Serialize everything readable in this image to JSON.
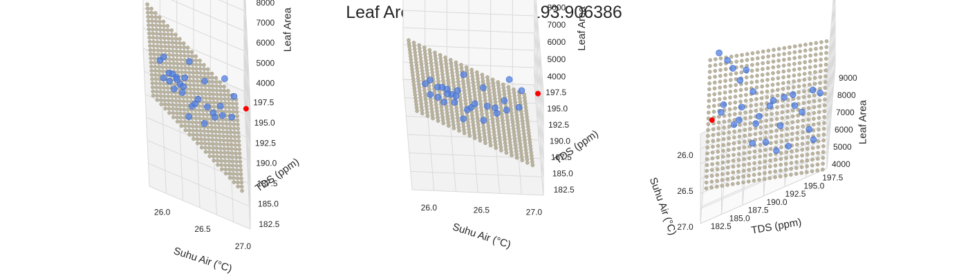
{
  "title": "Leaf Area Prediction = 9193.906386",
  "chart_data": {
    "type": "scatter",
    "variant": "3d-scatter-with-regression-plane",
    "panels": 3,
    "xlabel": "Suhu Air (°C)",
    "ylabel": "TDS (ppm)",
    "zlabel": "Leaf Area",
    "xlim": [
      25.85,
      27.1
    ],
    "ylim": [
      181.5,
      198.5
    ],
    "zlim": [
      3500,
      9500
    ],
    "x_ticks": [
      "27.0",
      "26.5",
      "26.0"
    ],
    "y_ticks": [
      "182.5",
      "185.0",
      "187.5",
      "190.0",
      "192.5",
      "195.0",
      "197.5"
    ],
    "z_ticks": [
      "4000",
      "5000",
      "6000",
      "7000",
      "8000",
      "9000"
    ],
    "plane_color": "#b8b09a",
    "point_color": "#4f7fe3",
    "prediction_color": "#ff0000",
    "plane": {
      "intercept": 5500,
      "slope_x": 2600,
      "slope_y": -120,
      "x_center": 26.45,
      "y_center": 190
    },
    "points": [
      {
        "x": 26.1,
        "y": 183.0,
        "z": 8950
      },
      {
        "x": 26.15,
        "y": 184.2,
        "z": 8500
      },
      {
        "x": 26.2,
        "y": 185.0,
        "z": 8100
      },
      {
        "x": 26.25,
        "y": 186.1,
        "z": 7400
      },
      {
        "x": 26.05,
        "y": 187.0,
        "z": 7000
      },
      {
        "x": 26.35,
        "y": 184.0,
        "z": 6800
      },
      {
        "x": 26.3,
        "y": 188.0,
        "z": 6600
      },
      {
        "x": 26.4,
        "y": 186.5,
        "z": 6400
      },
      {
        "x": 26.55,
        "y": 185.5,
        "z": 6200
      },
      {
        "x": 26.6,
        "y": 188.5,
        "z": 5900
      },
      {
        "x": 26.45,
        "y": 189.0,
        "z": 5600
      },
      {
        "x": 26.3,
        "y": 190.5,
        "z": 5300
      },
      {
        "x": 26.2,
        "y": 191.0,
        "z": 5100
      },
      {
        "x": 26.7,
        "y": 190.0,
        "z": 4950
      },
      {
        "x": 26.15,
        "y": 192.5,
        "z": 4800
      },
      {
        "x": 26.5,
        "y": 192.0,
        "z": 4700
      },
      {
        "x": 26.8,
        "y": 191.5,
        "z": 4600
      },
      {
        "x": 26.25,
        "y": 194.0,
        "z": 4450
      },
      {
        "x": 26.35,
        "y": 195.0,
        "z": 4300
      },
      {
        "x": 26.6,
        "y": 196.0,
        "z": 4150
      },
      {
        "x": 26.05,
        "y": 196.5,
        "z": 4050
      },
      {
        "x": 26.1,
        "y": 197.5,
        "z": 3900
      },
      {
        "x": 26.4,
        "y": 193.5,
        "z": 5800
      },
      {
        "x": 26.9,
        "y": 188.0,
        "z": 6100
      },
      {
        "x": 26.75,
        "y": 186.0,
        "z": 7200
      },
      {
        "x": 26.65,
        "y": 183.5,
        "z": 7700
      },
      {
        "x": 26.95,
        "y": 193.0,
        "z": 5200
      },
      {
        "x": 26.85,
        "y": 196.5,
        "z": 4500
      }
    ],
    "prediction_point": {
      "x": 27.05,
      "y": 182.0,
      "z": 9193.906386
    }
  }
}
